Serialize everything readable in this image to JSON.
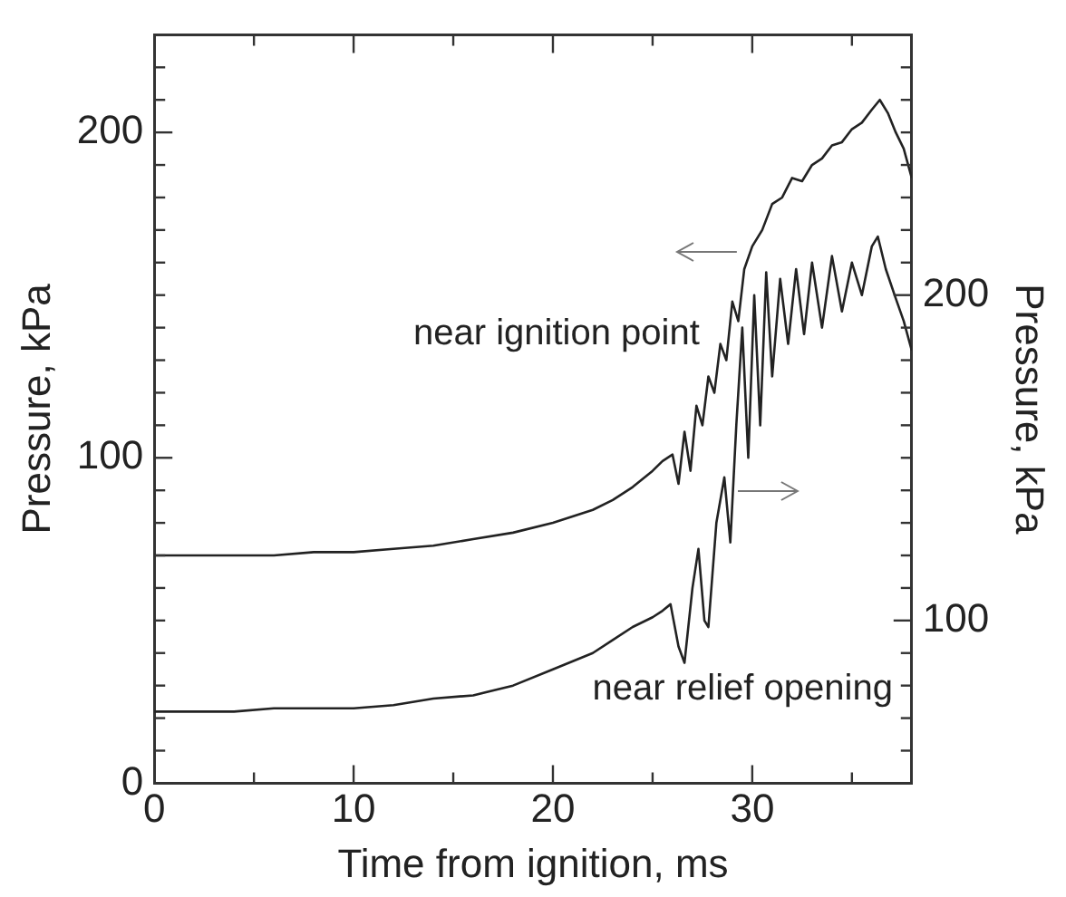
{
  "chart_data": {
    "type": "line",
    "xlabel": "Time from ignition, ms",
    "ylabel": "Pressure, kPa",
    "y2label": "Pressure, kPa",
    "xlim": [
      0,
      38
    ],
    "xticks": [
      0,
      {
        "value": 5,
        "label": null
      },
      10,
      {
        "value": 15,
        "label": null
      },
      20,
      {
        "value": 25,
        "label": null
      },
      30,
      {
        "value": 35,
        "label": null
      }
    ],
    "ylim": [
      0,
      230
    ],
    "yticks": [
      0,
      {
        "value": 10,
        "label": null
      },
      {
        "value": 20,
        "label": null
      },
      {
        "value": 30,
        "label": null
      },
      {
        "value": 40,
        "label": null
      },
      {
        "value": 50,
        "label": null
      },
      {
        "value": 60,
        "label": null
      },
      {
        "value": 70,
        "label": null
      },
      {
        "value": 80,
        "label": null
      },
      {
        "value": 90,
        "label": null
      },
      100,
      {
        "value": 110,
        "label": null
      },
      {
        "value": 120,
        "label": null
      },
      {
        "value": 130,
        "label": null
      },
      {
        "value": 140,
        "label": null
      },
      {
        "value": 150,
        "label": null
      },
      {
        "value": 160,
        "label": null
      },
      {
        "value": 170,
        "label": null
      },
      {
        "value": 180,
        "label": null
      },
      {
        "value": 190,
        "label": null
      },
      200,
      {
        "value": 210,
        "label": null
      },
      {
        "value": 220,
        "label": null
      }
    ],
    "y2lim": [
      50,
      280
    ],
    "y2ticks": [
      {
        "value": 50,
        "label": null
      },
      {
        "value": 60,
        "label": null
      },
      {
        "value": 70,
        "label": null
      },
      {
        "value": 80,
        "label": null
      },
      {
        "value": 90,
        "label": null
      },
      100,
      {
        "value": 110,
        "label": null
      },
      {
        "value": 120,
        "label": null
      },
      {
        "value": 130,
        "label": null
      },
      {
        "value": 140,
        "label": null
      },
      {
        "value": 150,
        "label": null
      },
      {
        "value": 160,
        "label": null
      },
      {
        "value": 170,
        "label": null
      },
      {
        "value": 180,
        "label": null
      },
      {
        "value": 190,
        "label": null
      },
      200,
      {
        "value": 210,
        "label": null
      },
      {
        "value": 220,
        "label": null
      },
      {
        "value": 230,
        "label": null
      },
      {
        "value": 240,
        "label": null
      },
      {
        "value": 250,
        "label": null
      },
      {
        "value": 260,
        "label": null
      },
      {
        "value": 270,
        "label": null
      }
    ],
    "grid": false,
    "legend": false,
    "marker": "none",
    "line_style": "solid",
    "series": [
      {
        "name": "near ignition point",
        "color": "#222222",
        "axis": "y",
        "x": [
          0,
          2,
          4,
          6,
          8,
          10,
          12,
          14,
          16,
          18,
          20,
          22,
          23,
          24,
          25,
          25.5,
          26,
          26.3,
          26.6,
          26.9,
          27.2,
          27.5,
          27.8,
          28.1,
          28.4,
          28.7,
          29,
          29.3,
          29.6,
          30,
          30.5,
          31,
          31.5,
          32,
          32.5,
          33,
          33.5,
          34,
          34.5,
          35,
          35.5,
          36,
          36.4,
          36.8,
          37.2,
          37.6,
          38
        ],
        "values": [
          70,
          70,
          70,
          70,
          71,
          71,
          72,
          73,
          75,
          77,
          80,
          84,
          87,
          91,
          96,
          99,
          101,
          92,
          108,
          96,
          116,
          110,
          125,
          120,
          135,
          130,
          148,
          142,
          158,
          165,
          170,
          178,
          180,
          186,
          185,
          190,
          192,
          196,
          197,
          201,
          203,
          207,
          210,
          206,
          200,
          195,
          186
        ]
      },
      {
        "name": "near relief opening",
        "color": "#222222",
        "axis": "y2",
        "x": [
          0,
          2,
          4,
          6,
          8,
          10,
          12,
          14,
          16,
          18,
          20,
          22,
          23,
          24,
          25,
          25.5,
          25.9,
          26.3,
          26.6,
          27,
          27.3,
          27.6,
          27.8,
          28.2,
          28.6,
          28.9,
          29.2,
          29.5,
          29.8,
          30.1,
          30.4,
          30.7,
          31,
          31.4,
          31.8,
          32.2,
          32.6,
          33,
          33.5,
          34,
          34.5,
          35,
          35.5,
          36,
          36.3,
          36.7,
          37.2,
          37.6,
          38
        ],
        "values": [
          72,
          72,
          72,
          73,
          73,
          73,
          74,
          76,
          77,
          80,
          85,
          90,
          94,
          98,
          101,
          103,
          105,
          92,
          87,
          110,
          122,
          100,
          98,
          130,
          144,
          124,
          160,
          190,
          150,
          200,
          160,
          207,
          175,
          205,
          185,
          208,
          188,
          210,
          190,
          212,
          195,
          210,
          200,
          215,
          218,
          208,
          199,
          192,
          183
        ]
      }
    ]
  }
}
